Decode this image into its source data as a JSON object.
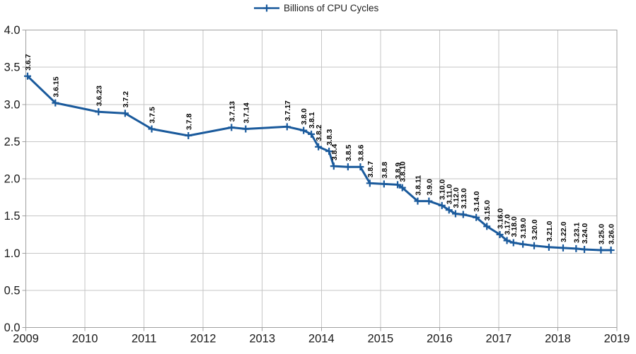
{
  "colors": {
    "line": "#1a5a9c",
    "grid": "#c6c6c6",
    "axis": "#a0a0a0",
    "tick_label": "#1a1a1a",
    "data_label": "#000000",
    "background": "#ffffff"
  },
  "chart_data": {
    "type": "line",
    "title": "",
    "series_name": "Billions of CPU Cycles",
    "legend_position": "top-center",
    "grid": true,
    "xlabel": "",
    "ylabel": "",
    "x_axis": {
      "min": 2009,
      "max": 2019,
      "tick_labels": [
        "2009",
        "2010",
        "2011",
        "2012",
        "2013",
        "2014",
        "2015",
        "2016",
        "2017",
        "2018",
        "2019"
      ]
    },
    "y_axis": {
      "min": 0.0,
      "max": 4.0,
      "step": 0.5,
      "tick_labels": [
        "0.0",
        "0.5",
        "1.0",
        "1.5",
        "2.0",
        "2.5",
        "3.0",
        "3.5",
        "4.0"
      ]
    },
    "points": [
      {
        "label": "3.6.7",
        "x": 2009.03,
        "y": 3.38
      },
      {
        "label": "3.6.15",
        "x": 2009.5,
        "y": 3.02
      },
      {
        "label": "3.6.23",
        "x": 2010.23,
        "y": 2.9
      },
      {
        "label": "3.7.2",
        "x": 2010.68,
        "y": 2.88
      },
      {
        "label": "3.7.5",
        "x": 2011.13,
        "y": 2.67
      },
      {
        "label": "3.7.8",
        "x": 2011.75,
        "y": 2.58
      },
      {
        "label": "3.7.13",
        "x": 2012.48,
        "y": 2.69
      },
      {
        "label": "3.7.14",
        "x": 2012.72,
        "y": 2.67
      },
      {
        "label": "3.7.17",
        "x": 2013.42,
        "y": 2.7
      },
      {
        "label": "3.8.0",
        "x": 2013.7,
        "y": 2.65
      },
      {
        "label": "3.8.1",
        "x": 2013.83,
        "y": 2.6
      },
      {
        "label": "3.8.2",
        "x": 2013.95,
        "y": 2.43
      },
      {
        "label": "3.8.3",
        "x": 2014.13,
        "y": 2.37
      },
      {
        "label": "3.8.4",
        "x": 2014.21,
        "y": 2.17
      },
      {
        "label": "3.8.5",
        "x": 2014.45,
        "y": 2.16
      },
      {
        "label": "3.8.6",
        "x": 2014.66,
        "y": 2.16
      },
      {
        "label": "3.8.7",
        "x": 2014.82,
        "y": 1.94
      },
      {
        "label": "3.8.8",
        "x": 2015.06,
        "y": 1.93
      },
      {
        "label": "3.8.9",
        "x": 2015.29,
        "y": 1.92
      },
      {
        "label": "3.8.10",
        "x": 2015.37,
        "y": 1.88
      },
      {
        "label": "3.8.11",
        "x": 2015.63,
        "y": 1.7
      },
      {
        "label": "3.9.0",
        "x": 2015.82,
        "y": 1.7
      },
      {
        "label": "3.10.0",
        "x": 2016.04,
        "y": 1.64
      },
      {
        "label": "3.11.0",
        "x": 2016.16,
        "y": 1.58
      },
      {
        "label": "3.12.0",
        "x": 2016.27,
        "y": 1.53
      },
      {
        "label": "3.13.0",
        "x": 2016.4,
        "y": 1.52
      },
      {
        "label": "3.14.0",
        "x": 2016.62,
        "y": 1.48
      },
      {
        "label": "3.15.0",
        "x": 2016.8,
        "y": 1.36
      },
      {
        "label": "3.16.0",
        "x": 2017.02,
        "y": 1.25
      },
      {
        "label": "3.17.0",
        "x": 2017.14,
        "y": 1.17
      },
      {
        "label": "3.18.0",
        "x": 2017.25,
        "y": 1.14
      },
      {
        "label": "3.19.0",
        "x": 2017.41,
        "y": 1.12
      },
      {
        "label": "3.20.0",
        "x": 2017.6,
        "y": 1.1
      },
      {
        "label": "3.21.0",
        "x": 2017.85,
        "y": 1.08
      },
      {
        "label": "3.22.0",
        "x": 2018.09,
        "y": 1.07
      },
      {
        "label": "3.23.1",
        "x": 2018.31,
        "y": 1.06
      },
      {
        "label": "3.24.0",
        "x": 2018.45,
        "y": 1.05
      },
      {
        "label": "3.25.0",
        "x": 2018.73,
        "y": 1.04
      },
      {
        "label": "3.26.0",
        "x": 2018.9,
        "y": 1.04
      }
    ]
  }
}
